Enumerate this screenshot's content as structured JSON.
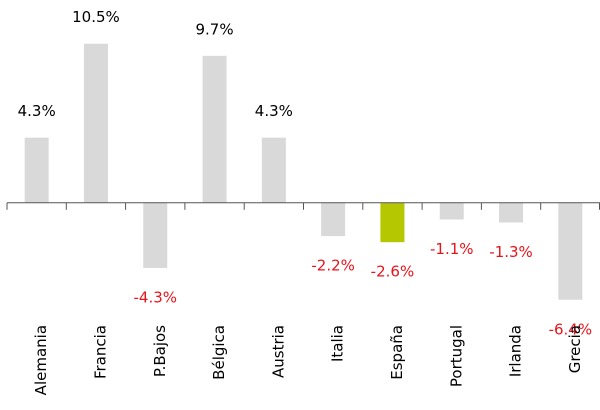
{
  "chart_data": {
    "type": "bar",
    "categories": [
      "Alemania",
      "Francia",
      "P.Bajos",
      "Bélgica",
      "Austria",
      "Italia",
      "España",
      "Portugal",
      "Irlanda",
      "Grecia"
    ],
    "values": [
      4.3,
      10.5,
      -4.3,
      9.7,
      4.3,
      -2.2,
      -2.6,
      -1.1,
      -1.3,
      -6.4
    ],
    "value_labels": [
      "4.3%",
      "10.5%",
      "-4.3%",
      "9.7%",
      "4.3%",
      "-2.2%",
      "-2.6%",
      "-1.1%",
      "-1.3%",
      "-6.4%"
    ],
    "colors": [
      "#d9d9d9",
      "#d9d9d9",
      "#d9d9d9",
      "#d9d9d9",
      "#d9d9d9",
      "#d9d9d9",
      "#b5c700",
      "#d9d9d9",
      "#d9d9d9",
      "#d9d9d9"
    ],
    "label_colors": {
      "positive": "#000000",
      "negative": "#e8141c"
    },
    "ylim": [
      -8,
      12
    ]
  }
}
